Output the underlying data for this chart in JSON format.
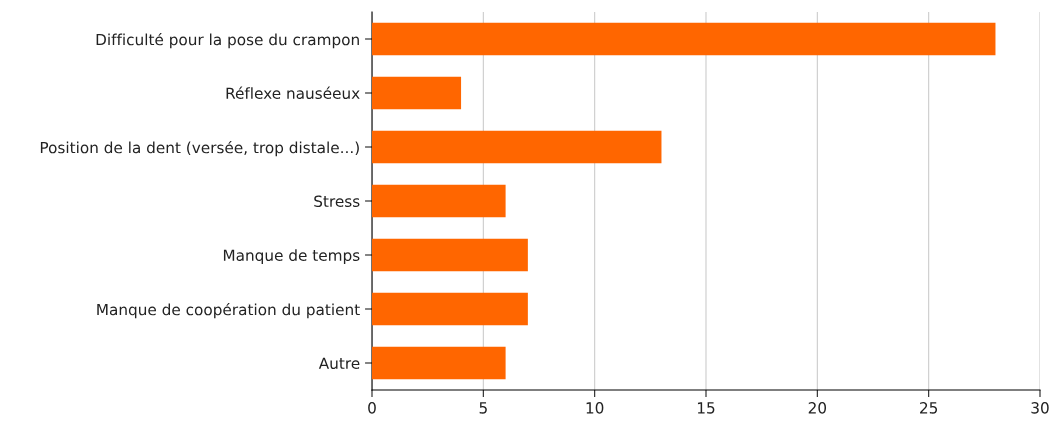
{
  "chart_data": {
    "type": "bar",
    "orientation": "horizontal",
    "categories": [
      "Difficulté pour la pose du crampon",
      "Réflexe nauséeux",
      "Position de la dent (versée, trop distale...)",
      "Stress",
      "Manque de temps",
      "Manque de coopération du patient",
      "Autre"
    ],
    "values": [
      28,
      4,
      13,
      6,
      7,
      7,
      6
    ],
    "color": "#ff6600",
    "xlim": [
      0,
      30
    ],
    "xticks": [
      0,
      5,
      10,
      15,
      20,
      25,
      30
    ],
    "grid": "x"
  }
}
